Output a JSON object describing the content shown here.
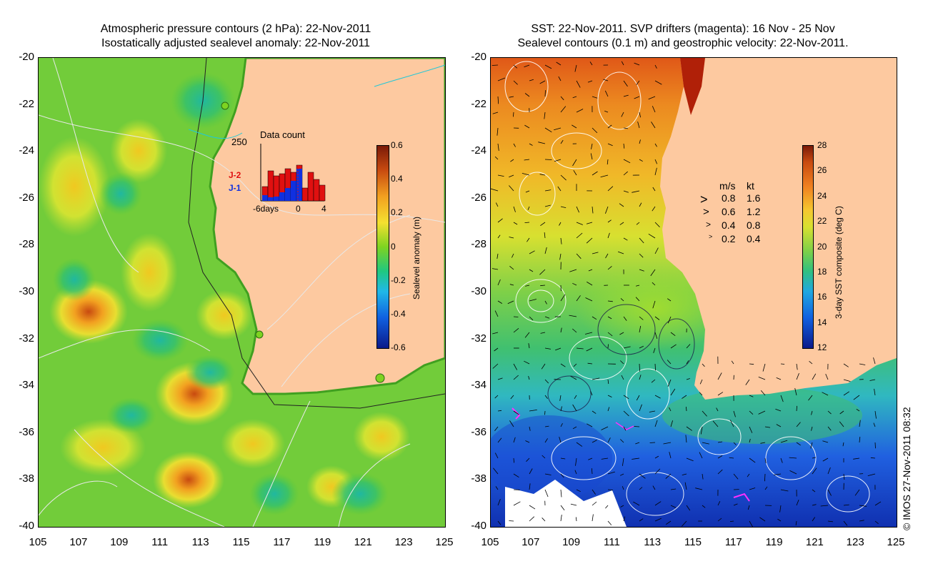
{
  "left_panel": {
    "title_line1": "Atmospheric pressure contours (2 hPa): 22-Nov-2011",
    "title_line2": "Isostatically adjusted sealevel anomaly: 22-Nov-2011",
    "y_ticks": [
      "-20",
      "-22",
      "-24",
      "-26",
      "-28",
      "-30",
      "-32",
      "-34",
      "-36",
      "-38",
      "-40"
    ],
    "x_ticks": [
      "105",
      "107",
      "109",
      "111",
      "113",
      "115",
      "117",
      "119",
      "121",
      "123",
      "125"
    ],
    "colorbar": {
      "title": "Sealevel anomaly (m)",
      "ticks": [
        "0.6",
        "0.4",
        "0.2",
        "0",
        "-0.2",
        "-0.4",
        "-0.6"
      ]
    },
    "inset": {
      "title": "Data count",
      "y_max_label": "250",
      "series_a": "J-2",
      "series_b": "J-1",
      "x_left_label": "-6days",
      "x_mid_label": "0",
      "x_right_label": "4",
      "color_a": "#e01010",
      "color_b": "#1030e0"
    }
  },
  "right_panel": {
    "title_line1": "SST: 22-Nov-2011. SVP drifters (magenta): 16 Nov - 25 Nov",
    "title_line2": "Sealevel contours (0.1 m) and geostrophic velocity: 22-Nov-2011.",
    "y_ticks": [
      "-20",
      "-22",
      "-24",
      "-26",
      "-28",
      "-30",
      "-32",
      "-34",
      "-36",
      "-38",
      "-40"
    ],
    "x_ticks": [
      "105",
      "107",
      "109",
      "111",
      "113",
      "115",
      "117",
      "119",
      "121",
      "123",
      "125"
    ],
    "colorbar": {
      "title": "3-day SST composite (deg C)",
      "ticks": [
        "28",
        "26",
        "24",
        "22",
        "20",
        "18",
        "16",
        "14",
        "12"
      ]
    },
    "velocity_legend": {
      "header_ms": "m/s",
      "header_kt": "kt",
      "rows": [
        {
          "ms": "0.8",
          "kt": "1.6"
        },
        {
          "ms": "0.6",
          "kt": "1.2"
        },
        {
          "ms": "0.4",
          "kt": "0.8"
        },
        {
          "ms": "0.2",
          "kt": "0.4"
        }
      ]
    }
  },
  "copyright": "© IMOS 27-Nov-2011 08:32",
  "colors": {
    "land": "#fdc9a0",
    "sla_zero": "#7ed321",
    "sst_mid": "#7fd34a"
  }
}
